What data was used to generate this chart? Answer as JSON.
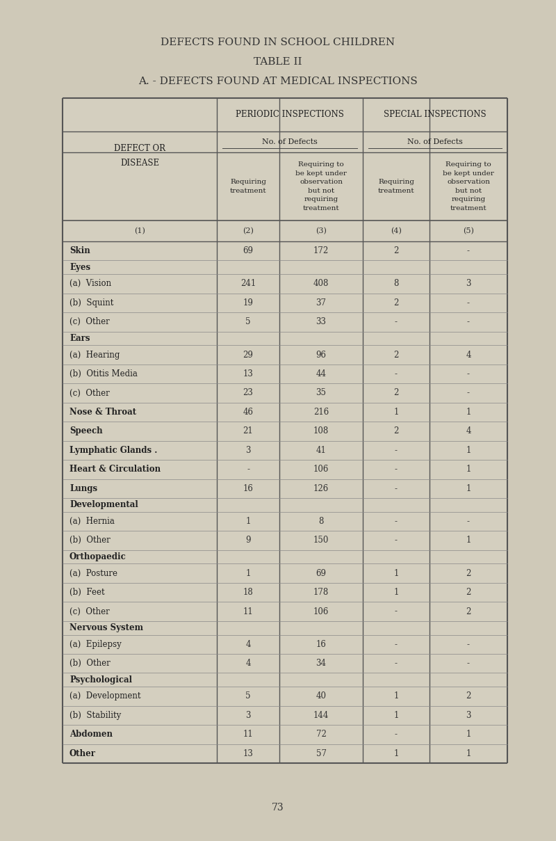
{
  "title1": "DEFECTS FOUND IN SCHOOL CHILDREN",
  "title2": "TABLE II",
  "title3": "A. - DEFECTS FOUND AT MEDICAL INSPECTIONS",
  "background_color": "#cfc9b8",
  "header1_periodic": "PERIODIC INSPECTIONS",
  "header1_special": "SPECIAL INSPECTIONS",
  "header2": "No. of Defects",
  "col_headers": [
    "Requiring\ntreatment",
    "Requiring to\nbe kept under\nobservation\nbut not\nrequiring\ntreatment",
    "Requiring\ntreatment",
    "Requiring to\nbe kept under\nobservation\nbut not\nrequiring\ntreatment"
  ],
  "col_nums": [
    "(2)",
    "(3)",
    "(4)",
    "(5)"
  ],
  "rows": [
    {
      "label": "Skin",
      "bold": true,
      "header": false,
      "c2": "69",
      "c3": "172",
      "c4": "2",
      "c5": "-"
    },
    {
      "label": "Eyes",
      "bold": true,
      "header": true,
      "c2": "",
      "c3": "",
      "c4": "",
      "c5": ""
    },
    {
      "label": "(a)  Vision",
      "bold": false,
      "header": false,
      "c2": "241",
      "c3": "408",
      "c4": "8",
      "c5": "3"
    },
    {
      "label": "(b)  Squint",
      "bold": false,
      "header": false,
      "c2": "19",
      "c3": "37",
      "c4": "2",
      "c5": "-"
    },
    {
      "label": "(c)  Other",
      "bold": false,
      "header": false,
      "c2": "5",
      "c3": "33",
      "c4": "-",
      "c5": "-"
    },
    {
      "label": "Ears",
      "bold": true,
      "header": true,
      "c2": "",
      "c3": "",
      "c4": "",
      "c5": ""
    },
    {
      "label": "(a)  Hearing",
      "bold": false,
      "header": false,
      "c2": "29",
      "c3": "96",
      "c4": "2",
      "c5": "4"
    },
    {
      "label": "(b)  Otitis Media",
      "bold": false,
      "header": false,
      "c2": "13",
      "c3": "44",
      "c4": "-",
      "c5": "-"
    },
    {
      "label": "(c)  Other",
      "bold": false,
      "header": false,
      "c2": "23",
      "c3": "35",
      "c4": "2",
      "c5": "-"
    },
    {
      "label": "Nose & Throat",
      "bold": true,
      "header": false,
      "c2": "46",
      "c3": "216",
      "c4": "1",
      "c5": "1"
    },
    {
      "label": "Speech",
      "bold": true,
      "header": false,
      "c2": "21",
      "c3": "108",
      "c4": "2",
      "c5": "4"
    },
    {
      "label": "Lymphatic Glands .",
      "bold": true,
      "header": false,
      "c2": "3",
      "c3": "41",
      "c4": "-",
      "c5": "1"
    },
    {
      "label": "Heart & Circulation",
      "bold": true,
      "header": false,
      "c2": "-",
      "c3": "106",
      "c4": "-",
      "c5": "1"
    },
    {
      "label": "Lungs",
      "bold": true,
      "header": false,
      "c2": "16",
      "c3": "126",
      "c4": "-",
      "c5": "1"
    },
    {
      "label": "Developmental",
      "bold": true,
      "header": true,
      "c2": "",
      "c3": "",
      "c4": "",
      "c5": ""
    },
    {
      "label": "(a)  Hernia",
      "bold": false,
      "header": false,
      "c2": "1",
      "c3": "8",
      "c4": "-",
      "c5": "-"
    },
    {
      "label": "(b)  Other",
      "bold": false,
      "header": false,
      "c2": "9",
      "c3": "150",
      "c4": "-",
      "c5": "1"
    },
    {
      "label": "Orthopaedic",
      "bold": true,
      "header": true,
      "c2": "",
      "c3": "",
      "c4": "",
      "c5": ""
    },
    {
      "label": "(a)  Posture",
      "bold": false,
      "header": false,
      "c2": "1",
      "c3": "69",
      "c4": "1",
      "c5": "2"
    },
    {
      "label": "(b)  Feet",
      "bold": false,
      "header": false,
      "c2": "18",
      "c3": "178",
      "c4": "1",
      "c5": "2"
    },
    {
      "label": "(c)  Other",
      "bold": false,
      "header": false,
      "c2": "11",
      "c3": "106",
      "c4": "-",
      "c5": "2"
    },
    {
      "label": "Nervous System",
      "bold": true,
      "header": true,
      "c2": "",
      "c3": "",
      "c4": "",
      "c5": ""
    },
    {
      "label": "(a)  Epilepsy",
      "bold": false,
      "header": false,
      "c2": "4",
      "c3": "16",
      "c4": "-",
      "c5": "-"
    },
    {
      "label": "(b)  Other",
      "bold": false,
      "header": false,
      "c2": "4",
      "c3": "34",
      "c4": "-",
      "c5": "-"
    },
    {
      "label": "Psychological",
      "bold": true,
      "header": true,
      "c2": "",
      "c3": "",
      "c4": "",
      "c5": ""
    },
    {
      "label": "(a)  Development",
      "bold": false,
      "header": false,
      "c2": "5",
      "c3": "40",
      "c4": "1",
      "c5": "2"
    },
    {
      "label": "(b)  Stability",
      "bold": false,
      "header": false,
      "c2": "3",
      "c3": "144",
      "c4": "1",
      "c5": "3"
    },
    {
      "label": "Abdomen",
      "bold": true,
      "header": false,
      "c2": "11",
      "c3": "72",
      "c4": "-",
      "c5": "1"
    },
    {
      "label": "Other",
      "bold": true,
      "header": false,
      "c2": "13",
      "c3": "57",
      "c4": "1",
      "c5": "1"
    }
  ],
  "page_num": "73"
}
